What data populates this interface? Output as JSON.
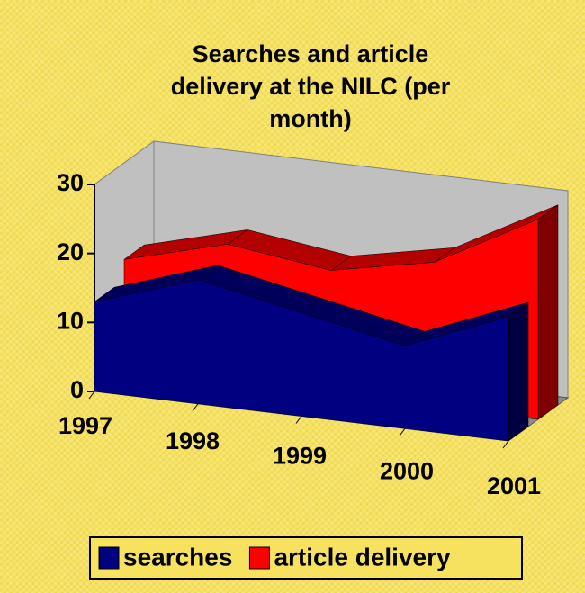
{
  "chart_data": {
    "type": "area3d",
    "title": "Searches and article delivery  at the NILC (per month)",
    "categories": [
      "1997",
      "1998",
      "1999",
      "2000",
      "2001"
    ],
    "series": [
      {
        "name": "searches",
        "color": "#000080",
        "values": [
          13,
          18,
          15,
          12,
          18
        ]
      },
      {
        "name": "article delivery",
        "color": "#ff0000",
        "values": [
          16,
          20,
          18,
          21,
          29
        ]
      }
    ],
    "ylim": [
      0,
      30
    ],
    "yticks": [
      0,
      10,
      20,
      30
    ],
    "legend": "bottom"
  }
}
